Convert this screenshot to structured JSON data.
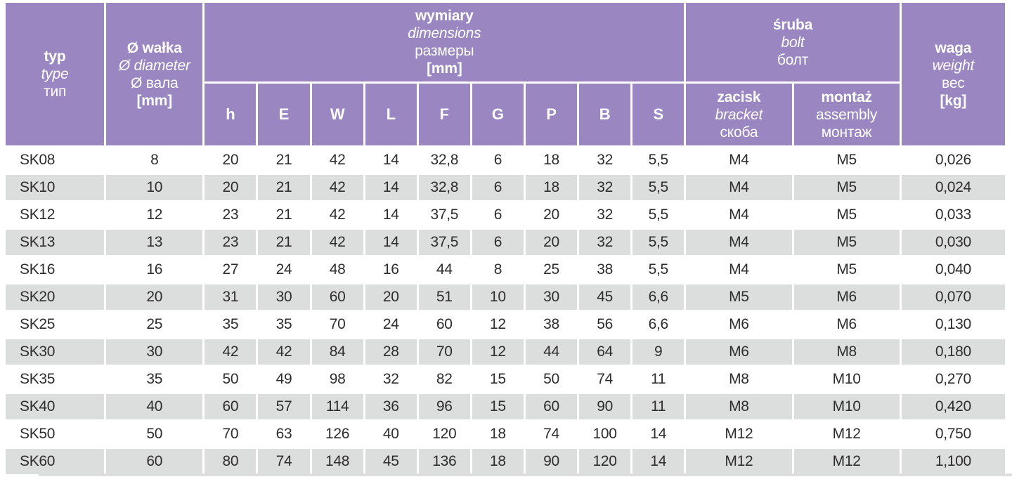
{
  "colors": {
    "header_purple": "#9a87c2",
    "row_gray": "#dcdedd",
    "text_dark": "#2d2d2d",
    "header_text": "#ffffff"
  },
  "table": {
    "header": {
      "typ": {
        "lines": [
          {
            "text": "typ",
            "style": "bold"
          },
          {
            "text": "type",
            "style": "italic"
          },
          {
            "text": "тип",
            "style": "regular"
          }
        ]
      },
      "shaft": {
        "lines": [
          {
            "text": "Ø wałka",
            "style": "bold"
          },
          {
            "text": "Ø diameter",
            "style": "italic"
          },
          {
            "text": "Ø вала",
            "style": "regular"
          },
          {
            "text": "[mm]",
            "style": "bold"
          }
        ]
      },
      "dimensions": {
        "lines": [
          {
            "text": "wymiary",
            "style": "bold"
          },
          {
            "text": "dimensions",
            "style": "italic"
          },
          {
            "text": "размеры",
            "style": "regular"
          },
          {
            "text": "[mm]",
            "style": "bold"
          }
        ]
      },
      "bolt": {
        "lines": [
          {
            "text": "śruba",
            "style": "bold"
          },
          {
            "text": "bolt",
            "style": "italic"
          },
          {
            "text": "болт",
            "style": "regular"
          }
        ]
      },
      "weight": {
        "lines": [
          {
            "text": "waga",
            "style": "bold"
          },
          {
            "text": "weight",
            "style": "italic"
          },
          {
            "text": "вес",
            "style": "regular"
          },
          {
            "text": "[kg]",
            "style": "bold"
          }
        ]
      },
      "bracket": {
        "lines": [
          {
            "text": "zacisk",
            "style": "bold"
          },
          {
            "text": "bracket",
            "style": "italic"
          },
          {
            "text": "скоба",
            "style": "regular"
          }
        ]
      },
      "assembly": {
        "lines": [
          {
            "text": "montaż",
            "style": "bold"
          },
          {
            "text": "assembly",
            "style": "regular"
          },
          {
            "text": "монтаж",
            "style": "regular"
          }
        ]
      },
      "dim_columns": [
        "h",
        "E",
        "W",
        "L",
        "F",
        "G",
        "P",
        "B",
        "S"
      ]
    },
    "rows": [
      {
        "type": "SK08",
        "shaft": "8",
        "dims": [
          "20",
          "21",
          "42",
          "14",
          "32,8",
          "6",
          "18",
          "32",
          "5,5"
        ],
        "bracket": "M4",
        "assembly": "M5",
        "weight": "0,026"
      },
      {
        "type": "SK10",
        "shaft": "10",
        "dims": [
          "20",
          "21",
          "42",
          "14",
          "32,8",
          "6",
          "18",
          "32",
          "5,5"
        ],
        "bracket": "M4",
        "assembly": "M5",
        "weight": "0,024"
      },
      {
        "type": "SK12",
        "shaft": "12",
        "dims": [
          "23",
          "21",
          "42",
          "14",
          "37,5",
          "6",
          "20",
          "32",
          "5,5"
        ],
        "bracket": "M4",
        "assembly": "M5",
        "weight": "0,033"
      },
      {
        "type": "SK13",
        "shaft": "13",
        "dims": [
          "23",
          "21",
          "42",
          "14",
          "37,5",
          "6",
          "20",
          "32",
          "5,5"
        ],
        "bracket": "M4",
        "assembly": "M5",
        "weight": "0,030"
      },
      {
        "type": "SK16",
        "shaft": "16",
        "dims": [
          "27",
          "24",
          "48",
          "16",
          "44",
          "8",
          "25",
          "38",
          "5,5"
        ],
        "bracket": "M4",
        "assembly": "M5",
        "weight": "0,040"
      },
      {
        "type": "SK20",
        "shaft": "20",
        "dims": [
          "31",
          "30",
          "60",
          "20",
          "51",
          "10",
          "30",
          "45",
          "6,6"
        ],
        "bracket": "M5",
        "assembly": "M6",
        "weight": "0,070"
      },
      {
        "type": "SK25",
        "shaft": "25",
        "dims": [
          "35",
          "35",
          "70",
          "24",
          "60",
          "12",
          "38",
          "56",
          "6,6"
        ],
        "bracket": "M6",
        "assembly": "M6",
        "weight": "0,130"
      },
      {
        "type": "SK30",
        "shaft": "30",
        "dims": [
          "42",
          "42",
          "84",
          "28",
          "70",
          "12",
          "44",
          "64",
          "9"
        ],
        "bracket": "M6",
        "assembly": "M8",
        "weight": "0,180"
      },
      {
        "type": "SK35",
        "shaft": "35",
        "dims": [
          "50",
          "49",
          "98",
          "32",
          "82",
          "15",
          "50",
          "74",
          "11"
        ],
        "bracket": "M8",
        "assembly": "M10",
        "weight": "0,270"
      },
      {
        "type": "SK40",
        "shaft": "40",
        "dims": [
          "60",
          "57",
          "114",
          "36",
          "96",
          "15",
          "60",
          "90",
          "11"
        ],
        "bracket": "M8",
        "assembly": "M10",
        "weight": "0,420"
      },
      {
        "type": "SK50",
        "shaft": "50",
        "dims": [
          "70",
          "63",
          "126",
          "40",
          "120",
          "18",
          "74",
          "100",
          "14"
        ],
        "bracket": "M12",
        "assembly": "M12",
        "weight": "0,750"
      },
      {
        "type": "SK60",
        "shaft": "60",
        "dims": [
          "80",
          "74",
          "148",
          "45",
          "136",
          "18",
          "90",
          "120",
          "14"
        ],
        "bracket": "M12",
        "assembly": "M12",
        "weight": "1,100"
      }
    ]
  }
}
